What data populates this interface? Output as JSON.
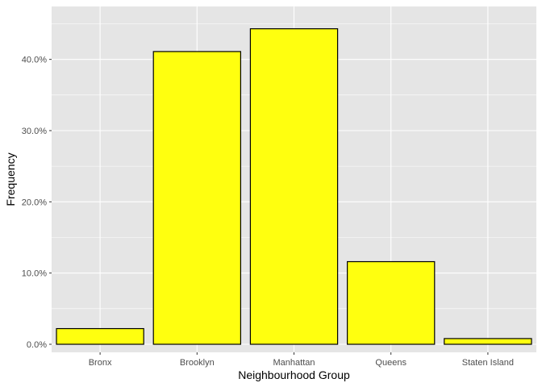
{
  "chart_data": {
    "type": "bar",
    "title": "",
    "xlabel": "Neighbourhood Group",
    "ylabel": "Frequency",
    "categories": [
      "Bronx",
      "Brooklyn",
      "Manhattan",
      "Queens",
      "Staten Island"
    ],
    "values": [
      2.2,
      41.1,
      44.3,
      11.6,
      0.8
    ],
    "value_unit": "percent",
    "ylim": [
      0,
      46.3
    ],
    "yticks": [
      0,
      10,
      20,
      30,
      40
    ],
    "ytick_labels": [
      "0.0%",
      "10.0%",
      "20.0%",
      "30.0%",
      "40.0%"
    ],
    "grid": true,
    "colors": {
      "panel_background": "#e5e5e5",
      "grid_major": "#ffffff",
      "bar_fill": "#ffff0f",
      "bar_outline": "#000000",
      "tick_text": "#4d4d4d"
    }
  }
}
